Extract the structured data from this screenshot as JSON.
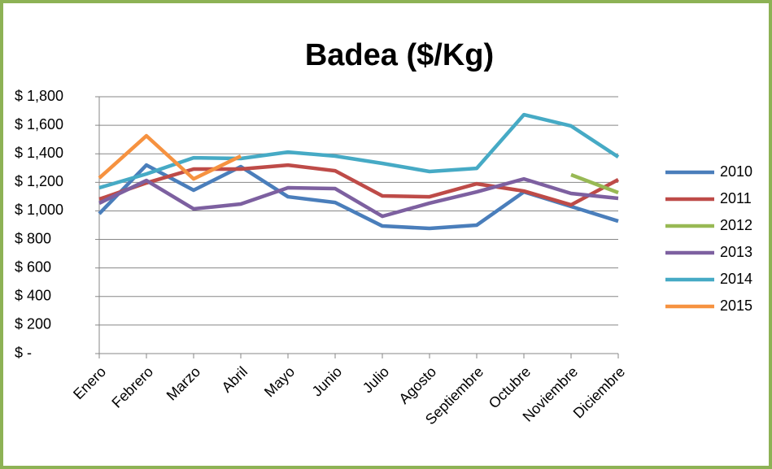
{
  "chart_data": {
    "type": "line",
    "title": "Badea ($/Kg)",
    "categories": [
      "Enero",
      "Febrero",
      "Marzo",
      "Abril",
      "Mayo",
      "Junio",
      "Julio",
      "Agosto",
      "Septiembre",
      "Octubre",
      "Noviembre",
      "Diciembre"
    ],
    "series": [
      {
        "name": "2010",
        "color": "#4a7ebb",
        "values": [
          980,
          1321,
          1145,
          1310,
          1099,
          1059,
          894,
          877,
          900,
          1133,
          1031,
          928
        ]
      },
      {
        "name": "2011",
        "color": "#be4b48",
        "values": [
          1082,
          1196,
          1293,
          1293,
          1321,
          1281,
          1105,
          1099,
          1190,
          1139,
          1042,
          1219
        ]
      },
      {
        "name": "2012",
        "color": "#98b954",
        "values": [
          null,
          null,
          null,
          null,
          null,
          null,
          null,
          null,
          null,
          null,
          1253,
          1128
        ]
      },
      {
        "name": "2013",
        "color": "#7d60a0",
        "values": [
          1054,
          1213,
          1014,
          1048,
          1162,
          1156,
          962,
          1054,
          1133,
          1224,
          1122,
          1088
        ]
      },
      {
        "name": "2014",
        "color": "#46aac5",
        "values": [
          1162,
          1259,
          1372,
          1367,
          1412,
          1384,
          1333,
          1276,
          1298,
          1674,
          1595,
          1378
        ]
      },
      {
        "name": "2015",
        "color": "#f69240",
        "values": [
          1230,
          1526,
          1224,
          1384,
          null,
          null,
          null,
          null,
          null,
          null,
          null,
          null
        ]
      }
    ],
    "ylim": [
      0,
      1800
    ],
    "yticks": [
      {
        "value": 0,
        "label": "$ -"
      },
      {
        "value": 200,
        "label": "$ 200"
      },
      {
        "value": 400,
        "label": "$ 400"
      },
      {
        "value": 600,
        "label": "$ 600"
      },
      {
        "value": 800,
        "label": "$ 800"
      },
      {
        "value": 1000,
        "label": "$ 1,000"
      },
      {
        "value": 1200,
        "label": "$ 1,200"
      },
      {
        "value": 1400,
        "label": "$ 1,400"
      },
      {
        "value": 1600,
        "label": "$ 1,600"
      },
      {
        "value": 1800,
        "label": "$ 1,800"
      }
    ],
    "grid": true,
    "legend": "right"
  }
}
